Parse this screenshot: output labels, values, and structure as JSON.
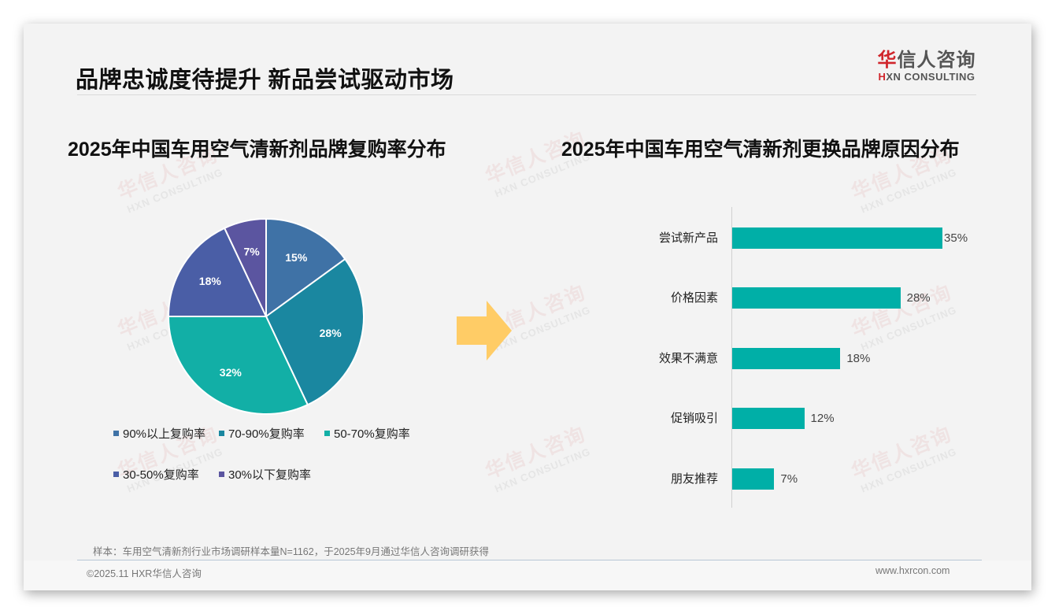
{
  "slide": {
    "title": "品牌忠诚度待提升 新品尝试驱动市场",
    "logo": {
      "cn_first": "华",
      "cn_rest": "信人咨询",
      "en_first": "H",
      "en_rest": "XN CONSULTING"
    },
    "watermark": {
      "cn": "华信人咨询",
      "en": "HXN CONSULTING"
    },
    "source": "样本：车用空气清新剂行业市场调研样本量N=1162，于2025年9月通过华信人咨询调研获得",
    "copyright": "©2025.11 HXR华信人咨询",
    "website": "www.hxrcon.com",
    "arrow_color": "#FFCC66"
  },
  "chart_data": [
    {
      "type": "pie",
      "title": "2025年中国车用空气清新剂品牌复购率分布",
      "categories": [
        "90%以上复购率",
        "70-90%复购率",
        "50-70%复购率",
        "30-50%复购率",
        "30%以下复购率"
      ],
      "values": [
        15,
        28,
        32,
        18,
        7
      ],
      "labels": [
        "15%",
        "28%",
        "32%",
        "18%",
        "7%"
      ],
      "colors": [
        "#3F72A6",
        "#1A87A0",
        "#12AFA6",
        "#4A5EA6",
        "#5B55A0"
      ],
      "start_angle": "12 o'clock, clockwise",
      "legend_position": "bottom"
    },
    {
      "type": "bar",
      "orientation": "horizontal",
      "title": "2025年中国车用空气清新剂更换品牌原因分布",
      "categories": [
        "尝试新产品",
        "价格因素",
        "效果不满意",
        "促销吸引",
        "朋友推荐"
      ],
      "values": [
        35,
        28,
        18,
        12,
        7
      ],
      "labels": [
        "35%",
        "28%",
        "18%",
        "12%",
        "7%"
      ],
      "color": "#00AFA7",
      "xlabel": "",
      "ylabel": "",
      "grid": false
    }
  ]
}
